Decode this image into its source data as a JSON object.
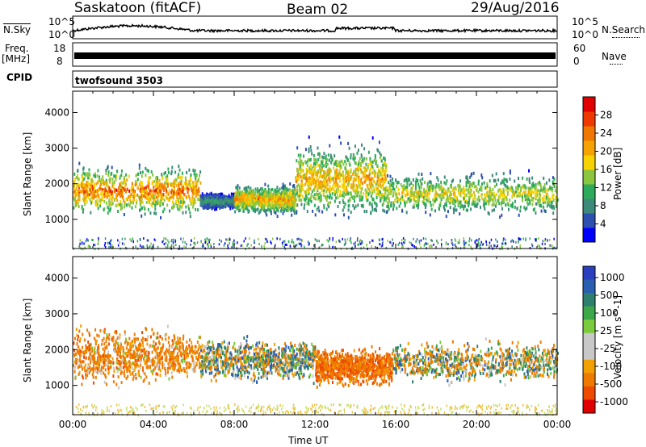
{
  "header": {
    "station": "Saskatoon (fitACF)",
    "beam": "Beam 02",
    "date": "29/Aug/2016"
  },
  "status_panel": {
    "nsky_label": "N.Sky",
    "nsky_ticks": [
      "10^5",
      "10^0"
    ],
    "nsearch_label": "N.Search",
    "nsearch_ticks": [
      "10^5",
      "10^0"
    ],
    "freq_label": "Freq.",
    "freq_unit": "[MHz]",
    "freq_ticks": [
      "18",
      "8"
    ],
    "nave_label": "Nave",
    "nave_ticks": [
      "60",
      "0"
    ],
    "cpid_label": "CPID",
    "cpid_value": "twofsound 3503"
  },
  "colors": {
    "power_scale": [
      "#0000ff",
      "#2d4fb0",
      "#3d8a7a",
      "#2eab5a",
      "#8cc63f",
      "#f5d200",
      "#f5a300",
      "#f07800",
      "#ee3a00",
      "#e00000"
    ],
    "velocity_scale": [
      "#2a3fc0",
      "#2a5fb0",
      "#2e7f6e",
      "#3ca84a",
      "#7acc3c",
      "#c8c8c8",
      "#c8c8c8",
      "#f0a000",
      "#ee7a00",
      "#ee4a00",
      "#e00000"
    ]
  },
  "chart_data": [
    {
      "type": "heatmap",
      "title": "",
      "xlabel": "Time UT",
      "ylabel": "Slant Range [km]",
      "xlim": [
        "00:00",
        "24:00"
      ],
      "x_ticks": [
        "00:00",
        "04:00",
        "08:00",
        "12:00",
        "16:00",
        "20:00",
        "00:00"
      ],
      "ylim": [
        180,
        4600
      ],
      "y_ticks": [
        1000,
        2000,
        3000,
        4000
      ],
      "colorbar": {
        "label": "Power [dB]",
        "range": [
          0,
          32
        ],
        "ticks": [
          4,
          8,
          12,
          16,
          20,
          24,
          28
        ]
      },
      "regions": [
        {
          "t_start": 0.0,
          "t_end": 6.3,
          "range_low": 1000,
          "range_high": 2700,
          "peak_value": 30
        },
        {
          "t_start": 6.3,
          "t_end": 8.0,
          "range_low": 1300,
          "range_high": 1800,
          "peak_value": 12
        },
        {
          "t_start": 8.0,
          "t_end": 11.0,
          "range_low": 1100,
          "range_high": 2100,
          "peak_value": 26
        },
        {
          "t_start": 11.0,
          "t_end": 15.5,
          "range_low": 900,
          "range_high": 3400,
          "peak_value": 26
        },
        {
          "t_start": 15.5,
          "t_end": 24.0,
          "range_low": 1000,
          "range_high": 2500,
          "peak_value": 22
        }
      ]
    },
    {
      "type": "heatmap",
      "title": "",
      "xlabel": "Time UT",
      "ylabel": "Slant Range [km]",
      "xlim": [
        "00:00",
        "24:00"
      ],
      "x_ticks": [
        "00:00",
        "04:00",
        "08:00",
        "12:00",
        "16:00",
        "20:00",
        "00:00"
      ],
      "ylim": [
        180,
        4600
      ],
      "y_ticks": [
        1000,
        2000,
        3000,
        4000
      ],
      "colorbar": {
        "label": "Velocity [m s^-1]",
        "ticks": [
          "1000",
          "500",
          "100",
          "25",
          "-25",
          "-100",
          "-500",
          "-1000"
        ]
      },
      "regions": [
        {
          "t_start": 0.0,
          "t_end": 6.3,
          "range_low": 900,
          "range_high": 2800,
          "mean_velocity": -200
        },
        {
          "t_start": 6.3,
          "t_end": 12.0,
          "range_low": 1000,
          "range_high": 2500,
          "mean_velocity": 50
        },
        {
          "t_start": 12.0,
          "t_end": 15.8,
          "range_low": 900,
          "range_high": 2200,
          "mean_velocity": -300
        },
        {
          "t_start": 15.8,
          "t_end": 24.0,
          "range_low": 1000,
          "range_high": 2400,
          "mean_velocity": 0
        }
      ]
    }
  ]
}
